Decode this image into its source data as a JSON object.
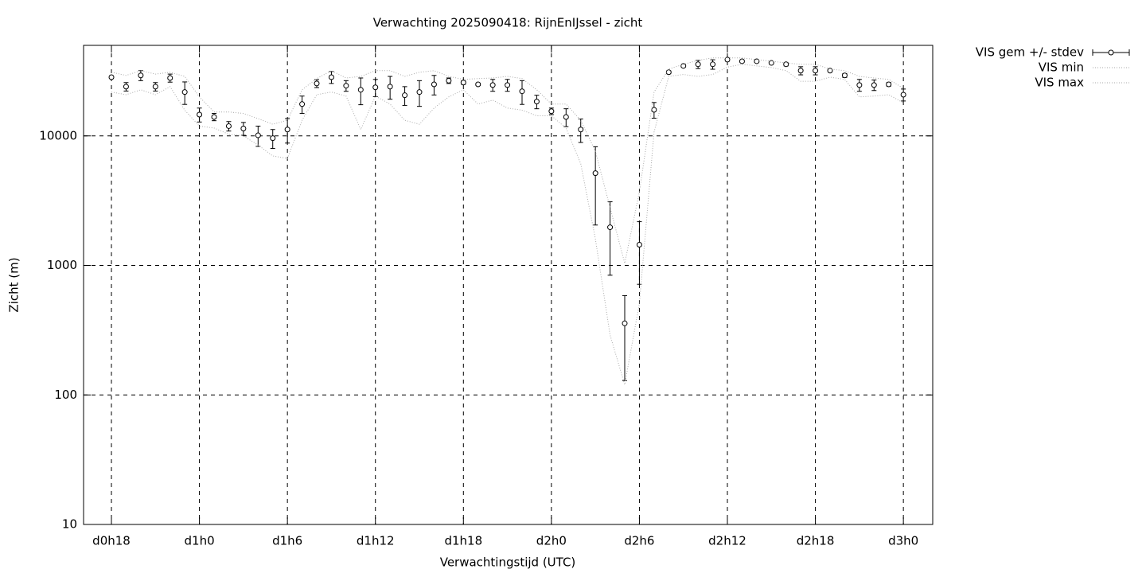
{
  "chart_data": {
    "type": "errorbar",
    "title": "Verwachting 2025090418: RijnEnIJssel - zicht",
    "x_label": "Verwachtingstijd (UTC)",
    "y_label": "Zicht (m)",
    "x": [
      18,
      19,
      20,
      21,
      22,
      23,
      24,
      25,
      26,
      27,
      28,
      29,
      30,
      31,
      32,
      33,
      34,
      35,
      36,
      37,
      38,
      39,
      40,
      41,
      42,
      43,
      44,
      45,
      46,
      47,
      48,
      49,
      50,
      51,
      52,
      53,
      54,
      55,
      56,
      57,
      58,
      59,
      60,
      61,
      62,
      63,
      64,
      65,
      66,
      67,
      68,
      69,
      70,
      71,
      72
    ],
    "series": [
      {
        "name": "VIS gem +/- stdev",
        "color": "#000000",
        "values": [
          28400,
          24000,
          29300,
          24000,
          28000,
          21800,
          14600,
          14000,
          11900,
          11400,
          10100,
          9600,
          11200,
          17600,
          25400,
          28400,
          24400,
          22700,
          23700,
          24000,
          20600,
          21800,
          25000,
          26700,
          25800,
          25000,
          24700,
          24700,
          22100,
          18400,
          15500,
          14000,
          11200,
          5150,
          1970,
          357,
          1445,
          15900,
          31000,
          34700,
          35700,
          35700,
          38800,
          37700,
          37700,
          36600,
          35700,
          31900,
          31900,
          31900,
          29300,
          24700,
          24700,
          25000,
          20800
        ],
        "errors": [
          500,
          1800,
          2600,
          1800,
          2000,
          4300,
          1800,
          900,
          1000,
          1300,
          1800,
          1600,
          2400,
          2700,
          1800,
          3000,
          2300,
          5300,
          3600,
          4800,
          3400,
          4900,
          4300,
          1300,
          800,
          500,
          2600,
          2600,
          4600,
          2200,
          900,
          2200,
          2300,
          3100,
          1130,
          228,
          730,
          2200,
          800,
          800,
          2600,
          3000,
          1000,
          800,
          500,
          500,
          1000,
          2300,
          2300,
          700,
          1000,
          2600,
          2300,
          800,
          2200
        ]
      },
      {
        "name": "VIS min",
        "color": "#aaaaaa",
        "values": [
          21800,
          20800,
          22700,
          20800,
          24000,
          15800,
          11900,
          11500,
          10300,
          10000,
          8500,
          7000,
          6700,
          13200,
          20800,
          21800,
          20300,
          11200,
          20300,
          17600,
          13200,
          12300,
          16400,
          20000,
          22700,
          17600,
          18900,
          16400,
          15800,
          14300,
          14300,
          11500,
          6100,
          1600,
          290,
          120,
          510,
          10700,
          28800,
          29800,
          28800,
          29800,
          34000,
          35700,
          34700,
          33700,
          31900,
          26400,
          26400,
          28400,
          27300,
          20000,
          20300,
          20800,
          18000
        ]
      },
      {
        "name": "VIS max",
        "color": "#aaaaaa",
        "values": [
          31000,
          29300,
          31900,
          30000,
          31000,
          28800,
          20000,
          15300,
          15300,
          14900,
          13600,
          12300,
          13200,
          22700,
          27700,
          31900,
          28000,
          28800,
          31900,
          31900,
          28800,
          31000,
          31900,
          28800,
          27300,
          27700,
          28000,
          28800,
          27700,
          22700,
          17600,
          17600,
          13200,
          7600,
          2800,
          1040,
          3700,
          21800,
          32800,
          35700,
          38300,
          40000,
          40000,
          40000,
          38800,
          37700,
          36600,
          35700,
          35700,
          32800,
          31900,
          28800,
          28000,
          27300,
          23300
        ]
      }
    ],
    "xlim": [
      16.1,
      74
    ],
    "ylim": [
      10,
      50000
    ],
    "log_scale_y": true,
    "xticks": [
      {
        "value": 18,
        "label": "d0h18"
      },
      {
        "value": 24,
        "label": "d1h0"
      },
      {
        "value": 30,
        "label": "d1h6"
      },
      {
        "value": 36,
        "label": "d1h12"
      },
      {
        "value": 42,
        "label": "d1h18"
      },
      {
        "value": 48,
        "label": "d2h0"
      },
      {
        "value": 54,
        "label": "d2h6"
      },
      {
        "value": 60,
        "label": "d2h12"
      },
      {
        "value": 66,
        "label": "d2h18"
      },
      {
        "value": 72,
        "label": "d3h0"
      }
    ],
    "yticks": [
      10,
      100,
      1000,
      10000
    ],
    "grid": true,
    "legend_position": "outside-top-right"
  }
}
